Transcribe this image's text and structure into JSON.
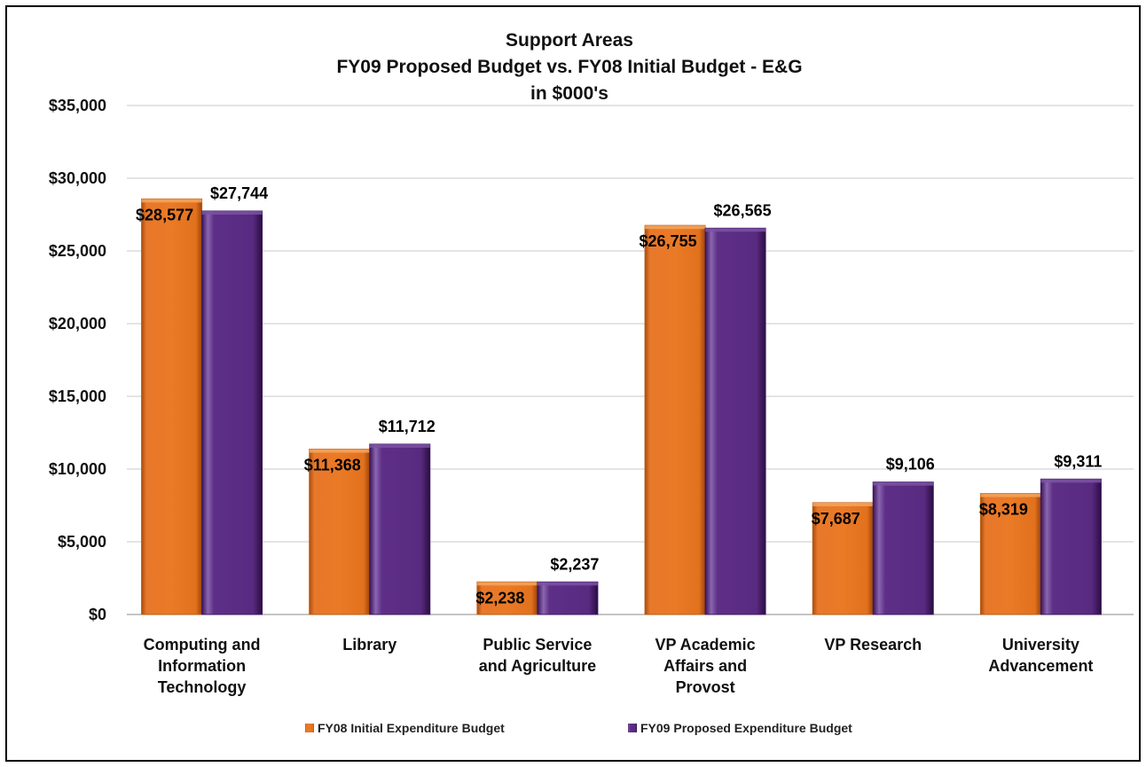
{
  "chart_data": {
    "type": "bar",
    "title": "Support Areas",
    "subtitle": "FY09 Proposed Budget vs. FY08 Initial Budget - E&G",
    "subtitle2": "in $000's",
    "categories": [
      [
        "Computing and",
        "Information",
        "Technology"
      ],
      [
        "Library"
      ],
      [
        "Public Service",
        "and Agriculture"
      ],
      [
        "VP Academic",
        "Affairs and",
        "Provost"
      ],
      [
        "VP Research"
      ],
      [
        "University",
        "Advancement"
      ]
    ],
    "series": [
      {
        "name": "FY08 Initial Expenditure Budget",
        "color": "#e87a24",
        "values": [
          28577,
          11368,
          2238,
          26755,
          7687,
          8319
        ],
        "labels": [
          "$28,577",
          "$11,368",
          "$2,238",
          "$26,755",
          "$7,687",
          "$8,319"
        ]
      },
      {
        "name": "FY09 Proposed Expenditure Budget",
        "color": "#5a2d82",
        "values": [
          27744,
          11712,
          2237,
          26565,
          9106,
          9311
        ],
        "labels": [
          "$27,744",
          "$11,712",
          "$2,237",
          "$26,565",
          "$9,106",
          "$9,311"
        ]
      }
    ],
    "ylim": [
      0,
      35000
    ],
    "y_ticks": [
      {
        "value": 0,
        "label": "$0"
      },
      {
        "value": 5000,
        "label": "$5,000"
      },
      {
        "value": 10000,
        "label": "$10,000"
      },
      {
        "value": 15000,
        "label": "$15,000"
      },
      {
        "value": 20000,
        "label": "$20,000"
      },
      {
        "value": 25000,
        "label": "$25,000"
      },
      {
        "value": 30000,
        "label": "$30,000"
      },
      {
        "value": 35000,
        "label": "$35,000"
      }
    ],
    "grid": true,
    "legend_position": "bottom"
  }
}
